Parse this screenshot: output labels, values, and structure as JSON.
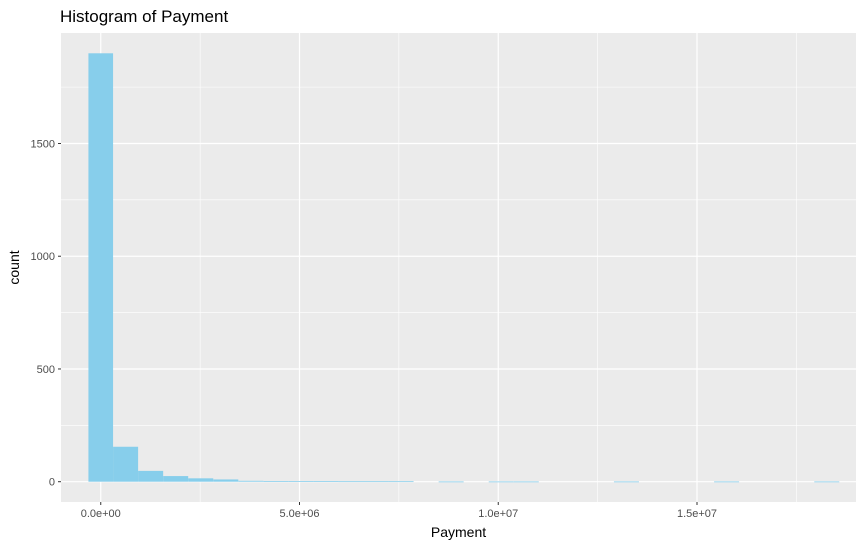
{
  "chart_data": {
    "type": "bar",
    "title": "Histogram of Payment",
    "xlabel": "Payment",
    "ylabel": "count",
    "xlim": [
      -1000000,
      19000000
    ],
    "ylim": [
      -90,
      1990
    ],
    "x_ticks": [
      0,
      5000000,
      10000000,
      15000000
    ],
    "x_tick_labels": [
      "0.0e+00",
      "5.0e+06",
      "1.0e+07",
      "1.5e+07"
    ],
    "y_ticks": [
      0,
      500,
      1000,
      1500
    ],
    "y_tick_labels": [
      "0",
      "500",
      "1000",
      "1500"
    ],
    "grid": true,
    "bar_color": "#87CEEB",
    "panel_color": "#EBEBEB",
    "grid_color": "#FFFFFF",
    "bins": [
      {
        "x0": -310000,
        "x1": 310000,
        "count": 1900
      },
      {
        "x0": 310000,
        "x1": 940000,
        "count": 155
      },
      {
        "x0": 940000,
        "x1": 1570000,
        "count": 48
      },
      {
        "x0": 1570000,
        "x1": 2200000,
        "count": 25
      },
      {
        "x0": 2200000,
        "x1": 2830000,
        "count": 15
      },
      {
        "x0": 2830000,
        "x1": 3460000,
        "count": 10
      },
      {
        "x0": 3460000,
        "x1": 4090000,
        "count": 4
      },
      {
        "x0": 4090000,
        "x1": 4720000,
        "count": 3
      },
      {
        "x0": 4720000,
        "x1": 5350000,
        "count": 3
      },
      {
        "x0": 5350000,
        "x1": 5980000,
        "count": 3
      },
      {
        "x0": 5980000,
        "x1": 6610000,
        "count": 2
      },
      {
        "x0": 6610000,
        "x1": 7240000,
        "count": 2
      },
      {
        "x0": 7240000,
        "x1": 7870000,
        "count": 2
      },
      {
        "x0": 8500000,
        "x1": 9130000,
        "count": 1
      },
      {
        "x0": 9760000,
        "x1": 10390000,
        "count": 1
      },
      {
        "x0": 10390000,
        "x1": 11020000,
        "count": 1
      },
      {
        "x0": 12910000,
        "x1": 13540000,
        "count": 1
      },
      {
        "x0": 15430000,
        "x1": 16060000,
        "count": 1
      },
      {
        "x0": 17950000,
        "x1": 18580000,
        "count": 1
      }
    ]
  }
}
